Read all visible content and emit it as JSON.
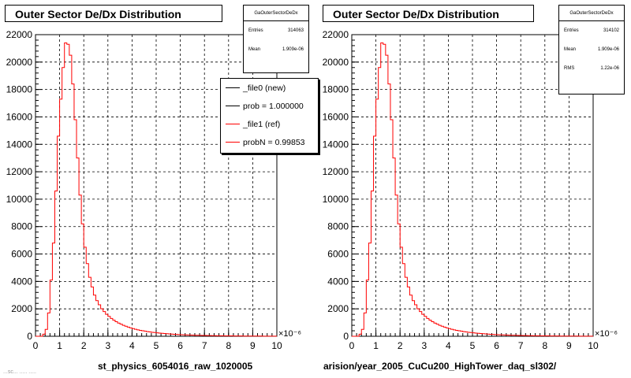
{
  "pads": [
    {
      "title": "Outer Sector De/Dx Distribution",
      "stats": {
        "name": "GaOuterSectorDeDx",
        "rows": [
          {
            "label": "Entries",
            "value": "314063"
          },
          {
            "label": "Mean",
            "value": "1.909e-06"
          }
        ]
      },
      "legend": [
        {
          "label": "_file0 (new)",
          "color": "#000000"
        },
        {
          "label": "prob = 1.000000",
          "color": "#000000"
        },
        {
          "label": "_file1 (ref)",
          "color": "#ff0000"
        },
        {
          "label": "probN = 0.99853",
          "color": "#ff0000"
        }
      ],
      "xtitle": "st_physics_6054016_raw_1020005",
      "stub_text": "...sc... ..... ....."
    },
    {
      "title": "Outer Sector De/Dx Distribution",
      "stats": {
        "name": "GaOuterSectorDeDx",
        "rows": [
          {
            "label": "Entries",
            "value": "314102"
          },
          {
            "label": "Mean",
            "value": "1.909e-06"
          },
          {
            "label": "RMS",
            "value": "1.22e-06"
          }
        ]
      },
      "xtitle": "arision/year_2005_CuCu200_HighTower_daq_sl302/"
    }
  ],
  "chart_data": [
    {
      "type": "histogram",
      "title": "Outer Sector De/Dx Distribution",
      "xlabel": "st_physics_6054016_raw_1020005",
      "x_exponent": "×10⁻⁶",
      "xlim": [
        0,
        10
      ],
      "ylim": [
        0,
        22000
      ],
      "xticks": [
        "0",
        "1",
        "2",
        "3",
        "4",
        "5",
        "6",
        "7",
        "8",
        "9",
        "10"
      ],
      "yticks": [
        "0",
        "2000",
        "4000",
        "6000",
        "8000",
        "10000",
        "12000",
        "14000",
        "16000",
        "18000",
        "20000",
        "22000"
      ],
      "grid": true,
      "bin_width": 0.1,
      "series": [
        {
          "name": "_file1 (ref)",
          "color": "#ff0000",
          "values": [
            0,
            0,
            0,
            150,
            500,
            1700,
            4100,
            6800,
            10600,
            14600,
            17300,
            19600,
            21400,
            21300,
            20500,
            18400,
            15800,
            13000,
            10300,
            8200,
            6500,
            5300,
            4300,
            3600,
            3000,
            2600,
            2300,
            2000,
            1800,
            1600,
            1450,
            1300,
            1180,
            1060,
            960,
            880,
            800,
            730,
            670,
            610,
            560,
            510,
            470,
            430,
            400,
            370,
            340,
            315,
            290,
            270,
            250,
            230,
            215,
            200,
            185,
            170,
            158,
            146,
            135,
            125,
            116,
            108,
            100,
            93,
            86,
            80,
            74,
            69,
            64,
            60,
            56,
            52,
            48,
            45,
            42,
            39,
            36,
            34,
            32,
            30,
            28,
            26,
            24,
            22,
            21,
            20,
            18,
            17,
            16,
            15,
            14,
            13,
            12,
            11,
            10,
            9,
            8,
            7,
            6,
            5
          ]
        }
      ]
    },
    {
      "type": "histogram",
      "title": "Outer Sector De/Dx Distribution",
      "xlabel": "arision/year_2005_CuCu200_HighTower_daq_sl302/",
      "x_exponent": "×10⁻⁶",
      "xlim": [
        0,
        10
      ],
      "ylim": [
        0,
        22000
      ],
      "xticks": [
        "0",
        "1",
        "2",
        "3",
        "4",
        "5",
        "6",
        "7",
        "8",
        "9",
        "10"
      ],
      "yticks": [
        "0",
        "2000",
        "4000",
        "6000",
        "8000",
        "10000",
        "12000",
        "14000",
        "16000",
        "18000",
        "20000",
        "22000"
      ],
      "grid": true,
      "bin_width": 0.1,
      "series": [
        {
          "name": "_file1 (ref)",
          "color": "#ff0000",
          "values": [
            0,
            0,
            0,
            150,
            500,
            1700,
            4100,
            6800,
            10600,
            14600,
            17300,
            19600,
            21400,
            21300,
            20500,
            18400,
            15800,
            13000,
            10300,
            8200,
            6500,
            5300,
            4300,
            3600,
            3000,
            2600,
            2300,
            2000,
            1800,
            1600,
            1450,
            1300,
            1180,
            1060,
            960,
            880,
            800,
            730,
            670,
            610,
            560,
            510,
            470,
            430,
            400,
            370,
            340,
            315,
            290,
            270,
            250,
            230,
            215,
            200,
            185,
            170,
            158,
            146,
            135,
            125,
            116,
            108,
            100,
            93,
            86,
            80,
            74,
            69,
            64,
            60,
            56,
            52,
            48,
            45,
            42,
            39,
            36,
            34,
            32,
            30,
            28,
            26,
            24,
            22,
            21,
            20,
            18,
            17,
            16,
            15,
            14,
            13,
            12,
            11,
            10,
            9,
            8,
            7,
            6,
            5
          ]
        }
      ]
    }
  ]
}
